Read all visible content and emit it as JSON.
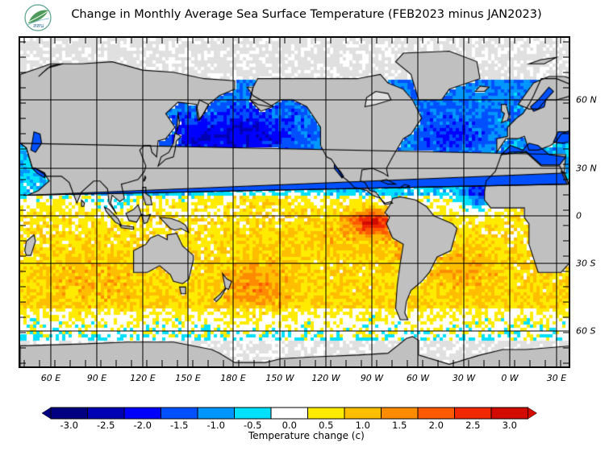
{
  "header": {
    "logo_text": "สสน",
    "title": "Change in Monthly Average Sea Surface Temperature (FEB2023 minus JAN2023)"
  },
  "map": {
    "longitude_labels": [
      "60 E",
      "90 E",
      "120 E",
      "150 E",
      "180 E",
      "150 W",
      "120 W",
      "90 W",
      "60 W",
      "30 W",
      "0 W",
      "30 E"
    ],
    "latitude_labels": [
      "60 N",
      "30 N",
      "0",
      "30 S",
      "60 S"
    ],
    "land_color": "#c0c0c0",
    "ice_color": "#e0e0e0"
  },
  "colorbar": {
    "title": "Temperature change  (c)",
    "tick_labels": [
      "-3.0",
      "-2.5",
      "-2.0",
      "-1.5",
      "-1.0",
      "-0.5",
      "0.0",
      "0.5",
      "1.0",
      "1.5",
      "2.0",
      "2.5",
      "3.0"
    ],
    "colors": [
      "#000080",
      "#0000b4",
      "#0000ff",
      "#0050ff",
      "#0096ff",
      "#00e1ff",
      "#ffffff",
      "#ffeb00",
      "#ffbe00",
      "#ff8c00",
      "#ff5a00",
      "#f02800",
      "#d20a00"
    ]
  }
}
